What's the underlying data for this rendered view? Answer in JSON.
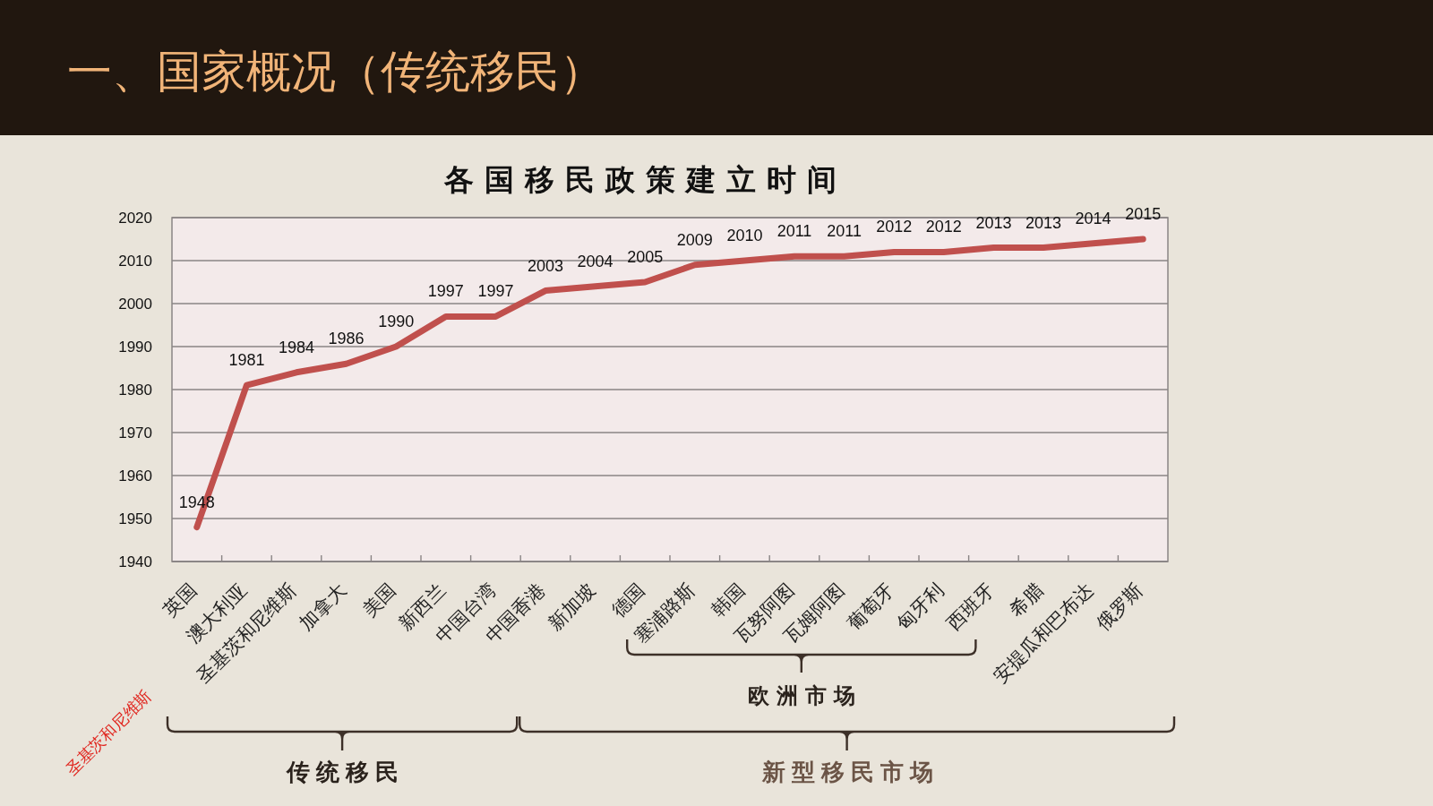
{
  "chart_data": {
    "type": "line",
    "title": "各国移民政策建立时间",
    "categories": [
      "英国",
      "澳大利亚",
      "圣基茨和尼维斯",
      "加拿大",
      "美国",
      "新西兰",
      "中国台湾",
      "中国香港",
      "新加坡",
      "德国",
      "塞浦路斯",
      "韩国",
      "瓦努阿图",
      "瓦姆阿图",
      "葡萄牙",
      "匈牙利",
      "西班牙",
      "希腊",
      "安提瓜和巴布达",
      "俄罗斯"
    ],
    "series": [
      {
        "color": "#c0504d",
        "values": [
          1948,
          1981,
          1984,
          1986,
          1990,
          1997,
          1997,
          2003,
          2004,
          2005,
          2009,
          2010,
          2011,
          2011,
          2012,
          2012,
          2013,
          2013,
          2014,
          2015
        ]
      }
    ],
    "ylim": [
      1940,
      2020
    ],
    "yticks": [
      1940,
      1950,
      1960,
      1970,
      1980,
      1990,
      2000,
      2010,
      2020
    ],
    "grid": "y",
    "data_labels": true,
    "marker": "none",
    "line_style": "solid",
    "annotations": [
      "一、国家概况（传统移民）",
      "圣基茨和尼维斯",
      "欧洲市场",
      "传统移民",
      "新型移民市场"
    ]
  }
}
